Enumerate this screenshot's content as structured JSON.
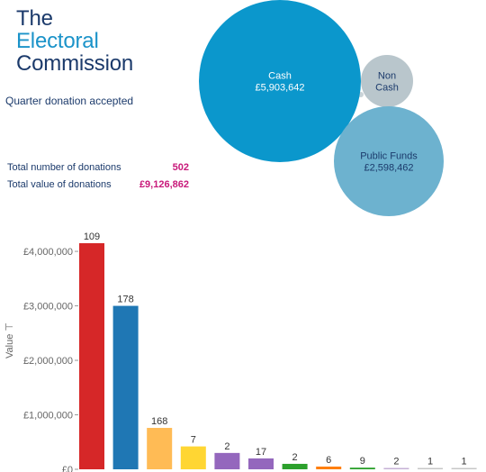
{
  "logo": {
    "line1": "The",
    "line2": "Electoral",
    "line3": "Commission"
  },
  "subtitle": "Quarter donation accepted",
  "stats": [
    {
      "label": "Total number of donations",
      "value": "502"
    },
    {
      "label": "Total value of donations",
      "value": "£9,126,862"
    }
  ],
  "bubbles": [
    {
      "name": "Cash",
      "value_label": "£5,903,642",
      "value": 5903642,
      "color": "#0b97cc"
    },
    {
      "name": "Non Cash",
      "name_lines": [
        "Non",
        "Cash"
      ],
      "value_label": "",
      "value": 624758,
      "color": "#b9c6cc"
    },
    {
      "name": "Public Funds",
      "value_label": "£2,598,462",
      "value": 2598462,
      "color": "#6db2cf"
    }
  ],
  "chart_data": {
    "type": "bar",
    "ylabel": "Value ⊤",
    "ylim": [
      0,
      4150000
    ],
    "yticks": [
      0,
      1000000,
      2000000,
      3000000,
      4000000
    ],
    "ytick_labels": [
      "£0",
      "£1,000,000",
      "£2,000,000",
      "£3,000,000",
      "£4,000,000"
    ],
    "values": [
      4150000,
      3000000,
      760000,
      420000,
      300000,
      200000,
      100000,
      50000,
      30000,
      18000,
      12000,
      10000
    ],
    "labels": [
      "109",
      "178",
      "168",
      "7",
      "2",
      "17",
      "2",
      "6",
      "9",
      "2",
      "1",
      "1"
    ],
    "colors": [
      "#d62728",
      "#1f77b4",
      "#ffbb55",
      "#ffd633",
      "#9467bd",
      "#9467bd",
      "#2ca02c",
      "#ff7f0e",
      "#2ca02c",
      "#c5b0d5",
      "#c7c7c7",
      "#c7c7c7"
    ]
  }
}
